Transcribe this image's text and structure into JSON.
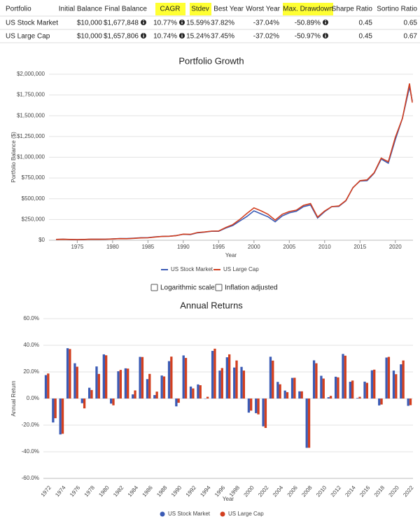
{
  "table": {
    "headers": [
      "Portfolio",
      "Initial Balance",
      "Final Balance",
      "CAGR",
      "Stdev",
      "Best Year",
      "Worst Year",
      "Max. Drawdown",
      "Sharpe Ratio",
      "Sortino Ratio"
    ],
    "rows": [
      [
        "US Stock Market",
        "$10,000",
        "$1,677,848",
        "10.77%",
        "15.59%",
        "37.82%",
        "-37.04%",
        "-50.89%",
        "0.45",
        "0.65"
      ],
      [
        "US Large Cap",
        "$10,000",
        "$1,657,806",
        "10.74%",
        "15.24%",
        "37.45%",
        "-37.02%",
        "-50.97%",
        "0.45",
        "0.67"
      ]
    ]
  },
  "controls": [
    "Logarithmic scale",
    "Inflation adjusted"
  ],
  "chart_data": [
    {
      "type": "line",
      "title": "Portfolio Growth",
      "x_label": "Year",
      "y_label": "Portfolio Balance ($)",
      "x": [
        1972,
        1973,
        1974,
        1975,
        1976,
        1977,
        1978,
        1979,
        1980,
        1981,
        1982,
        1983,
        1984,
        1985,
        1986,
        1987,
        1988,
        1989,
        1990,
        1991,
        1992,
        1993,
        1994,
        1995,
        1996,
        1997,
        1998,
        1999,
        2000,
        2001,
        2002,
        2003,
        2004,
        2005,
        2006,
        2007,
        2008,
        2009,
        2010,
        2011,
        2012,
        2013,
        2014,
        2015,
        2016,
        2017,
        2018,
        2019,
        2020,
        2021,
        2022,
        2022.4
      ],
      "series": [
        {
          "name": "US Stock Market",
          "color": "#3b5bb5",
          "values": [
            10000,
            11760,
            9643,
            7039,
            9700,
            12270,
            11840,
            12800,
            15890,
            21160,
            20360,
            24530,
            30100,
            31030,
            40740,
            46690,
            47900,
            56190,
            71980,
            67730,
            89680,
            97750,
            108100,
            107900,
            146500,
            177300,
            232300,
            286400,
            354600,
            317000,
            282100,
            223100,
            293200,
            329900,
            349700,
            403900,
            425700,
            268000,
            345000,
            404000,
            408000,
            475000,
            634000,
            714000,
            717000,
            808000,
            979000,
            928000,
            1214000,
            1469000,
            1846000,
            1677848
          ]
        },
        {
          "name": "US Large Cap",
          "color": "#d23f1f",
          "values": [
            10000,
            11880,
            10120,
            7440,
            10210,
            12650,
            11710,
            12460,
            14770,
            19570,
            18570,
            22560,
            27640,
            29330,
            38480,
            45600,
            47970,
            55930,
            73550,
            71200,
            92920,
            99980,
            110000,
            111400,
            153100,
            188200,
            250700,
            322400,
            390100,
            354600,
            312400,
            243400,
            312800,
            346200,
            362800,
            419400,
            442000,
            278300,
            352000,
            404800,
            412900,
            478700,
            632800,
            718300,
            727700,
            813500,
            990000,
            945500,
            1241400,
            1468600,
            1888600,
            1657806
          ]
        }
      ],
      "xlim": [
        1971,
        2022.5
      ],
      "xticks": [
        1975,
        1980,
        1985,
        1990,
        1995,
        2000,
        2005,
        2010,
        2015,
        2020
      ],
      "ylim": [
        0,
        2000000
      ],
      "yticks": [
        {
          "value": 0,
          "label": "$0"
        },
        {
          "value": 250000,
          "label": "$250,000"
        },
        {
          "value": 500000,
          "label": "$500,000"
        },
        {
          "value": 750000,
          "label": "$750,000"
        },
        {
          "value": 1000000,
          "label": "$1,000,000"
        },
        {
          "value": 1250000,
          "label": "$1,250,000"
        },
        {
          "value": 1500000,
          "label": "$1,500,000"
        },
        {
          "value": 1750000,
          "label": "$1,750,000"
        },
        {
          "value": 2000000,
          "label": "$2,000,000"
        }
      ],
      "grid": true
    },
    {
      "type": "bar",
      "title": "Annual Returns",
      "x_label": "Year",
      "y_label": "Annual Return",
      "categories": [
        "1972",
        null,
        "1974",
        null,
        "1976",
        null,
        "1978",
        null,
        "1980",
        null,
        "1982",
        null,
        "1984",
        null,
        "1986",
        null,
        "1988",
        null,
        "1990",
        null,
        "1992",
        null,
        "1994",
        null,
        "1996",
        null,
        "1998",
        null,
        "2000",
        null,
        "2002",
        null,
        "2004",
        null,
        "2006",
        null,
        "2008",
        null,
        "2010",
        null,
        "2012",
        null,
        "2014",
        null,
        "2016",
        null,
        "2018",
        null,
        "2020",
        null,
        "2022"
      ],
      "series": [
        {
          "name": "US Stock Market",
          "color": "#3b5bb5",
          "values": [
            17.6,
            -18.0,
            -27.0,
            37.82,
            26.5,
            -3.5,
            8.1,
            24.1,
            33.2,
            -3.8,
            20.5,
            22.7,
            3.1,
            31.3,
            14.6,
            2.6,
            17.3,
            28.1,
            -5.9,
            32.4,
            9.0,
            10.6,
            -0.2,
            35.8,
            21.0,
            31.0,
            23.3,
            23.8,
            -10.6,
            -11.0,
            -20.9,
            31.4,
            12.5,
            6.0,
            15.5,
            5.4,
            -37.04,
            28.7,
            17.1,
            1.0,
            16.4,
            33.5,
            12.6,
            0.4,
            12.7,
            21.2,
            -5.2,
            30.8,
            21.0,
            25.7,
            -5.5
          ]
        },
        {
          "name": "US Large Cap",
          "color": "#d23f1f",
          "values": [
            18.8,
            -14.8,
            -26.5,
            37.2,
            23.9,
            -7.4,
            6.4,
            18.5,
            32.5,
            -5.1,
            21.5,
            22.5,
            6.1,
            31.2,
            18.5,
            5.2,
            16.6,
            31.5,
            -3.2,
            30.5,
            7.6,
            10.0,
            1.3,
            37.45,
            22.9,
            33.2,
            28.6,
            21.0,
            -9.1,
            -11.9,
            -22.1,
            28.5,
            10.7,
            4.8,
            15.6,
            5.4,
            -37.02,
            26.5,
            15.0,
            2.0,
            15.9,
            32.2,
            13.5,
            1.3,
            11.8,
            21.7,
            -4.5,
            31.3,
            18.3,
            28.6,
            -5.0
          ]
        }
      ],
      "ylim": [
        -60,
        60
      ],
      "yticks": [
        {
          "value": -60,
          "label": "-60.0%"
        },
        {
          "value": -40,
          "label": "-40.0%"
        },
        {
          "value": -20,
          "label": "-20.0%"
        },
        {
          "value": 0,
          "label": "0.0%"
        },
        {
          "value": 20,
          "label": "20.0%"
        },
        {
          "value": 40,
          "label": "40.0%"
        },
        {
          "value": 60,
          "label": "60.0%"
        }
      ],
      "grid": true
    }
  ]
}
